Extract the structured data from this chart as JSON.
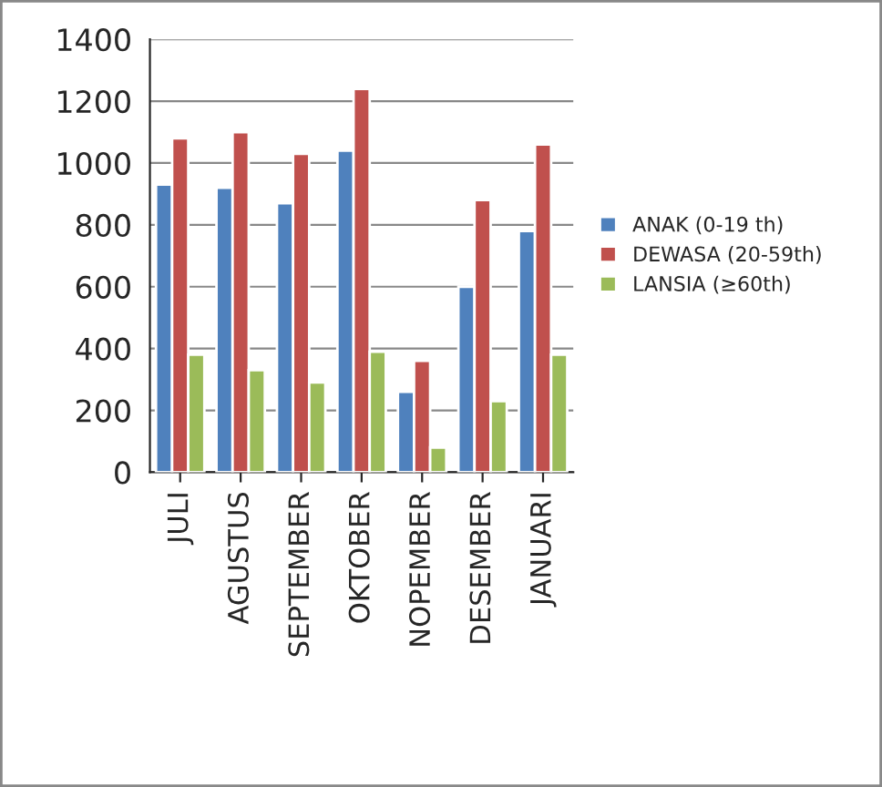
{
  "chart_data": {
    "type": "bar",
    "categories": [
      "JULI",
      "AGUSTUS",
      "SEPTEMBER",
      "OKTOBER",
      "NOPEMBER",
      "DESEMBER",
      "JANUARI"
    ],
    "series": [
      {
        "name": "ANAK (0-19 th)",
        "color": "#4f81bd",
        "values": [
          930,
          920,
          870,
          1040,
          260,
          600,
          780
        ]
      },
      {
        "name": "DEWASA (20-59th)",
        "color": "#c0504d",
        "values": [
          1080,
          1100,
          1030,
          1240,
          360,
          880,
          1060
        ]
      },
      {
        "name": "LANSIA (≥60th)",
        "color": "#9bbb59",
        "values": [
          380,
          330,
          290,
          390,
          80,
          230,
          380
        ]
      }
    ],
    "ylim": [
      0,
      1400
    ],
    "yticks": [
      0,
      200,
      400,
      600,
      800,
      1000,
      1200,
      1400
    ],
    "grid": "y",
    "legend": "right"
  }
}
